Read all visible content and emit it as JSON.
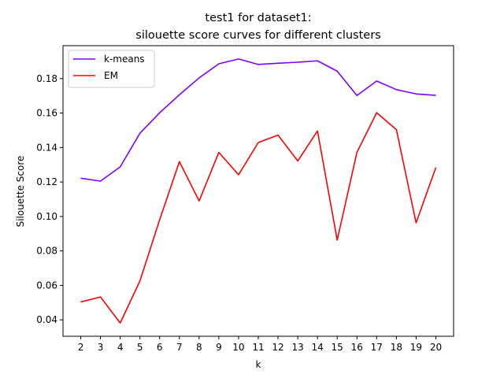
{
  "chart_data": {
    "type": "line",
    "title_line1": "test1 for dataset1:",
    "title_line2": "silouette score curves for different clusters",
    "xlabel": "k",
    "ylabel": "Silouette Score",
    "x": [
      2,
      3,
      4,
      5,
      6,
      7,
      8,
      9,
      10,
      11,
      12,
      13,
      14,
      15,
      16,
      17,
      18,
      19,
      20
    ],
    "x_ticks": [
      "2",
      "3",
      "4",
      "5",
      "6",
      "7",
      "8",
      "9",
      "10",
      "11",
      "12",
      "13",
      "14",
      "15",
      "16",
      "17",
      "18",
      "19",
      "20"
    ],
    "y_ticks": [
      "0.04",
      "0.06",
      "0.08",
      "0.10",
      "0.12",
      "0.14",
      "0.16",
      "0.18"
    ],
    "xlim": [
      1.1,
      20.9
    ],
    "ylim": [
      0.0305,
      0.1991
    ],
    "grid": false,
    "legend_position": "top-left",
    "series": [
      {
        "name": "k-means",
        "color": "#7f00ff",
        "values": [
          0.1222,
          0.1205,
          0.1288,
          0.1483,
          0.1602,
          0.1706,
          0.1804,
          0.1886,
          0.1914,
          0.1882,
          0.1889,
          0.1895,
          0.1903,
          0.1843,
          0.1702,
          0.1786,
          0.1736,
          0.1711,
          0.1703
        ]
      },
      {
        "name": "EM",
        "color": "#ff0000",
        "values": [
          0.0504,
          0.0533,
          0.0382,
          0.0626,
          0.0981,
          0.1318,
          0.109,
          0.1372,
          0.1242,
          0.1429,
          0.1472,
          0.1322,
          0.1496,
          0.0863,
          0.1372,
          0.1602,
          0.1504,
          0.0963,
          0.1284
        ]
      }
    ]
  }
}
